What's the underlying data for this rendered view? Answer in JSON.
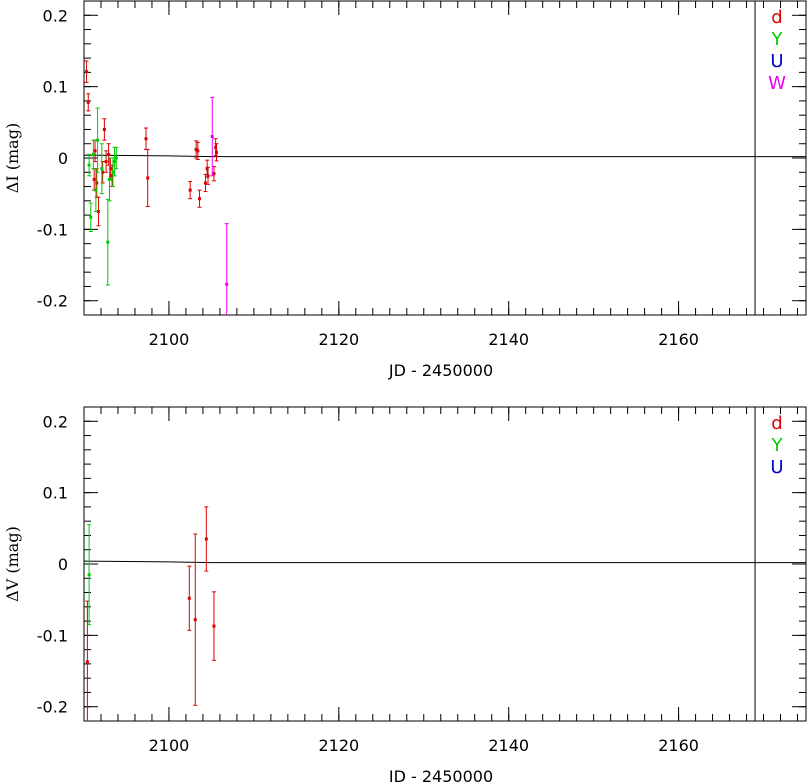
{
  "chart_data": [
    {
      "type": "scatter",
      "xlabel": "JD - 2450000",
      "ylabel": "ΔI (mag)",
      "xlim": [
        2090,
        2175
      ],
      "ylim": [
        -0.22,
        0.22
      ],
      "xticks": [
        2100,
        2120,
        2140,
        2160
      ],
      "yticks": [
        -0.2,
        -0.1,
        0,
        0.1,
        0.2
      ],
      "ytick_labels": [
        "-0.2",
        "-0.1",
        "0",
        "0.1",
        "0.2"
      ],
      "xtick_labels": [
        "2100",
        "2120",
        "2140",
        "2160"
      ],
      "vline_x": 2169,
      "legend_placement": "top-right",
      "model_line": [
        [
          2090,
          0.004
        ],
        [
          2100,
          0.003
        ],
        [
          2105,
          0.002
        ],
        [
          2175,
          0.002
        ]
      ],
      "series": [
        {
          "name": "d",
          "color": "#dd0000",
          "points": [
            [
              2090.3,
              0.121,
              0.015
            ],
            [
              2090.5,
              0.078,
              0.012
            ],
            [
              2091.2,
              -0.03,
              0.015
            ],
            [
              2091.3,
              0.01,
              0.015
            ],
            [
              2091.5,
              -0.035,
              0.02
            ],
            [
              2091.7,
              -0.075,
              0.02
            ],
            [
              2092.2,
              -0.02,
              0.015
            ],
            [
              2092.4,
              0.04,
              0.015
            ],
            [
              2092.6,
              -0.005,
              0.015
            ],
            [
              2092.9,
              0.005,
              0.015
            ],
            [
              2093.1,
              -0.015,
              0.015
            ],
            [
              2093.3,
              -0.025,
              0.015
            ],
            [
              2097.3,
              0.027,
              0.015
            ],
            [
              2097.5,
              -0.028,
              0.04
            ],
            [
              2102.5,
              -0.045,
              0.012
            ],
            [
              2103.2,
              0.012,
              0.012
            ],
            [
              2103.4,
              0.01,
              0.012
            ],
            [
              2103.6,
              -0.057,
              0.012
            ],
            [
              2104.3,
              -0.035,
              0.012
            ],
            [
              2104.5,
              -0.015,
              0.012
            ],
            [
              2104.6,
              -0.025,
              0.012
            ],
            [
              2105.3,
              -0.022,
              0.01
            ],
            [
              2105.5,
              0.015,
              0.012
            ],
            [
              2105.6,
              0.008,
              0.012
            ]
          ]
        },
        {
          "name": "Y",
          "color": "#00cc00",
          "points": [
            [
              2090.6,
              -0.01,
              0.015
            ],
            [
              2090.8,
              -0.083,
              0.02
            ],
            [
              2091.1,
              0.005,
              0.02
            ],
            [
              2091.4,
              -0.045,
              0.03
            ],
            [
              2091.6,
              0.025,
              0.045
            ],
            [
              2092.1,
              -0.015,
              0.035
            ],
            [
              2092.8,
              -0.118,
              0.06
            ],
            [
              2093.0,
              -0.03,
              0.03
            ],
            [
              2093.4,
              -0.02,
              0.02
            ],
            [
              2093.6,
              -0.005,
              0.02
            ],
            [
              2093.8,
              0.0,
              0.015
            ]
          ]
        },
        {
          "name": "U",
          "color": "#0000cc",
          "points": []
        },
        {
          "name": "W",
          "color": "#ee00ee",
          "points": [
            [
              2105.1,
              0.03,
              0.055
            ],
            [
              2106.8,
              -0.177,
              0.085
            ]
          ]
        }
      ]
    },
    {
      "type": "scatter",
      "xlabel": "JD - 2450000",
      "ylabel": "ΔV (mag)",
      "xlim": [
        2090,
        2175
      ],
      "ylim": [
        -0.22,
        0.22
      ],
      "xticks": [
        2100,
        2120,
        2140,
        2160
      ],
      "yticks": [
        -0.2,
        -0.1,
        0,
        0.1,
        0.2
      ],
      "ytick_labels": [
        "-0.2",
        "-0.1",
        "0",
        "0.1",
        "0.2"
      ],
      "xtick_labels": [
        "2100",
        "2120",
        "2140",
        "2160"
      ],
      "vline_x": 2169,
      "legend_placement": "top-right",
      "model_line": [
        [
          2090,
          0.004
        ],
        [
          2100,
          0.003
        ],
        [
          2105,
          0.002
        ],
        [
          2175,
          0.002
        ]
      ],
      "series": [
        {
          "name": "d",
          "color": "#dd0000",
          "points": [
            [
              2090.4,
              -0.137,
              0.085
            ],
            [
              2102.4,
              -0.048,
              0.045
            ],
            [
              2103.1,
              -0.078,
              0.12
            ],
            [
              2104.4,
              0.035,
              0.045
            ],
            [
              2105.3,
              -0.087,
              0.048
            ]
          ]
        },
        {
          "name": "Y",
          "color": "#00cc00",
          "points": [
            [
              2090.6,
              -0.015,
              0.07
            ]
          ]
        },
        {
          "name": "U",
          "color": "#0000cc",
          "points": []
        }
      ]
    }
  ]
}
